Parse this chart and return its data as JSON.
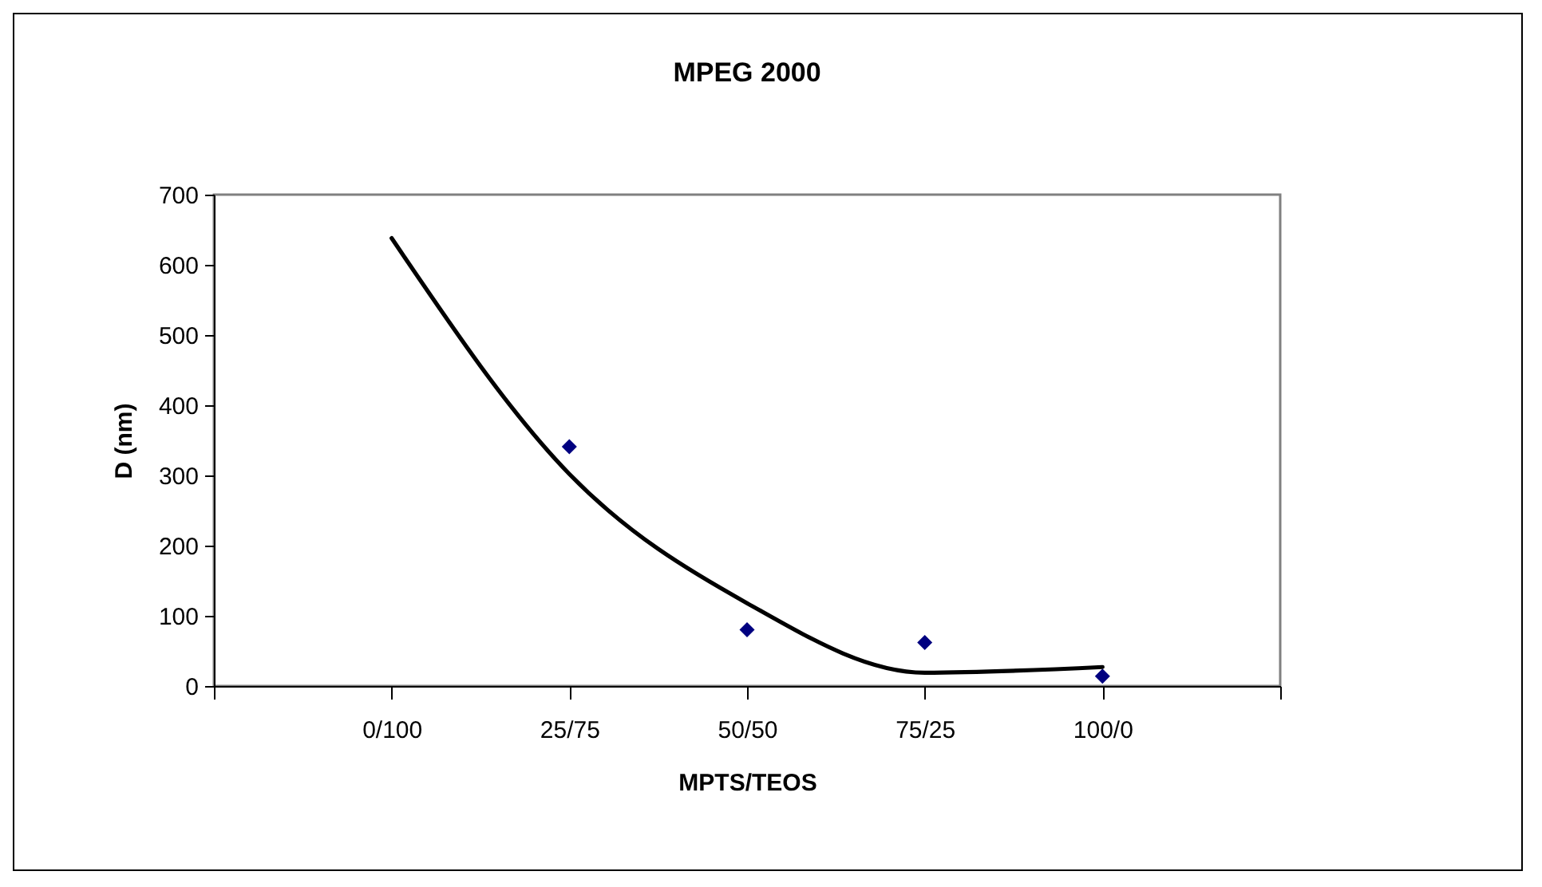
{
  "chart_data": {
    "type": "scatter",
    "title": "MPEG 2000",
    "xlabel": "MPTS/TEOS",
    "ylabel": "D (nm)",
    "categories": [
      null,
      "0/100",
      "25/75",
      "50/50",
      "75/25",
      "100/0",
      null
    ],
    "ylim": [
      0,
      700
    ],
    "yticks": [
      0,
      100,
      200,
      300,
      400,
      500,
      600,
      700
    ],
    "grid": false,
    "series": [
      {
        "color": "#000080",
        "marker": "diamond",
        "x": [
          "25/75",
          "50/50",
          "75/25",
          "100/0"
        ],
        "values": [
          341,
          80,
          62,
          14
        ]
      },
      {
        "type": "line",
        "color": "#000000",
        "marker": "none",
        "x": [
          "0/100",
          "25/75",
          "50/50",
          "75/25",
          "100/0"
        ],
        "values": [
          638,
          302,
          118,
          19,
          27
        ]
      }
    ]
  }
}
